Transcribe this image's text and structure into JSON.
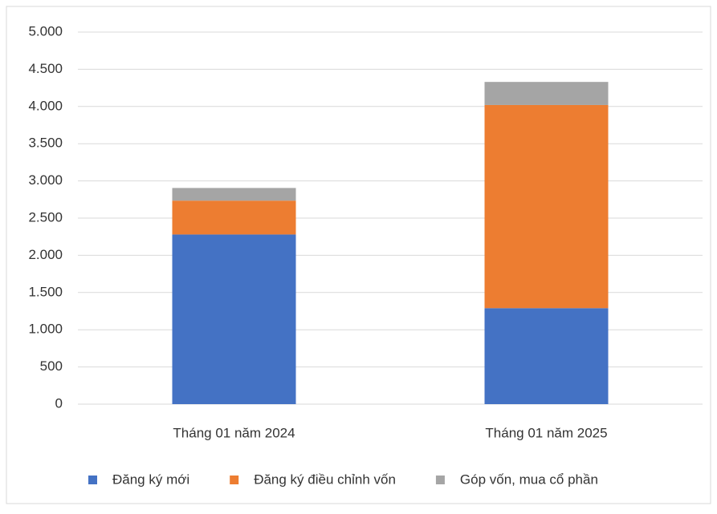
{
  "chart_data": {
    "type": "bar",
    "stacked": true,
    "categories": [
      "Tháng 01 năm 2024",
      "Tháng 01 năm 2025"
    ],
    "series": [
      {
        "name": "Đăng ký mới",
        "color": "#4472c4",
        "values": [
          2280,
          1290
        ]
      },
      {
        "name": "Đăng ký điều chỉnh vốn",
        "color": "#ed7d31",
        "values": [
          455,
          2730
        ]
      },
      {
        "name": "Góp vốn, mua cổ phần",
        "color": "#a5a5a5",
        "values": [
          170,
          310
        ]
      }
    ],
    "ylim": [
      0,
      5000
    ],
    "yticks": [
      0,
      500,
      {
        "value": 1000,
        "label": "1.000"
      },
      {
        "value": 1500,
        "label": "1.500"
      },
      {
        "value": 2000,
        "label": "2.000"
      },
      {
        "value": 2500,
        "label": "2.500"
      },
      {
        "value": 3000,
        "label": "3.000"
      },
      {
        "value": 3500,
        "label": "3.500"
      },
      {
        "value": 4000,
        "label": "4.000"
      },
      {
        "value": 4500,
        "label": "4.500"
      },
      {
        "value": 5000,
        "label": "5.000"
      }
    ],
    "grid": true,
    "legend": "bottom"
  }
}
